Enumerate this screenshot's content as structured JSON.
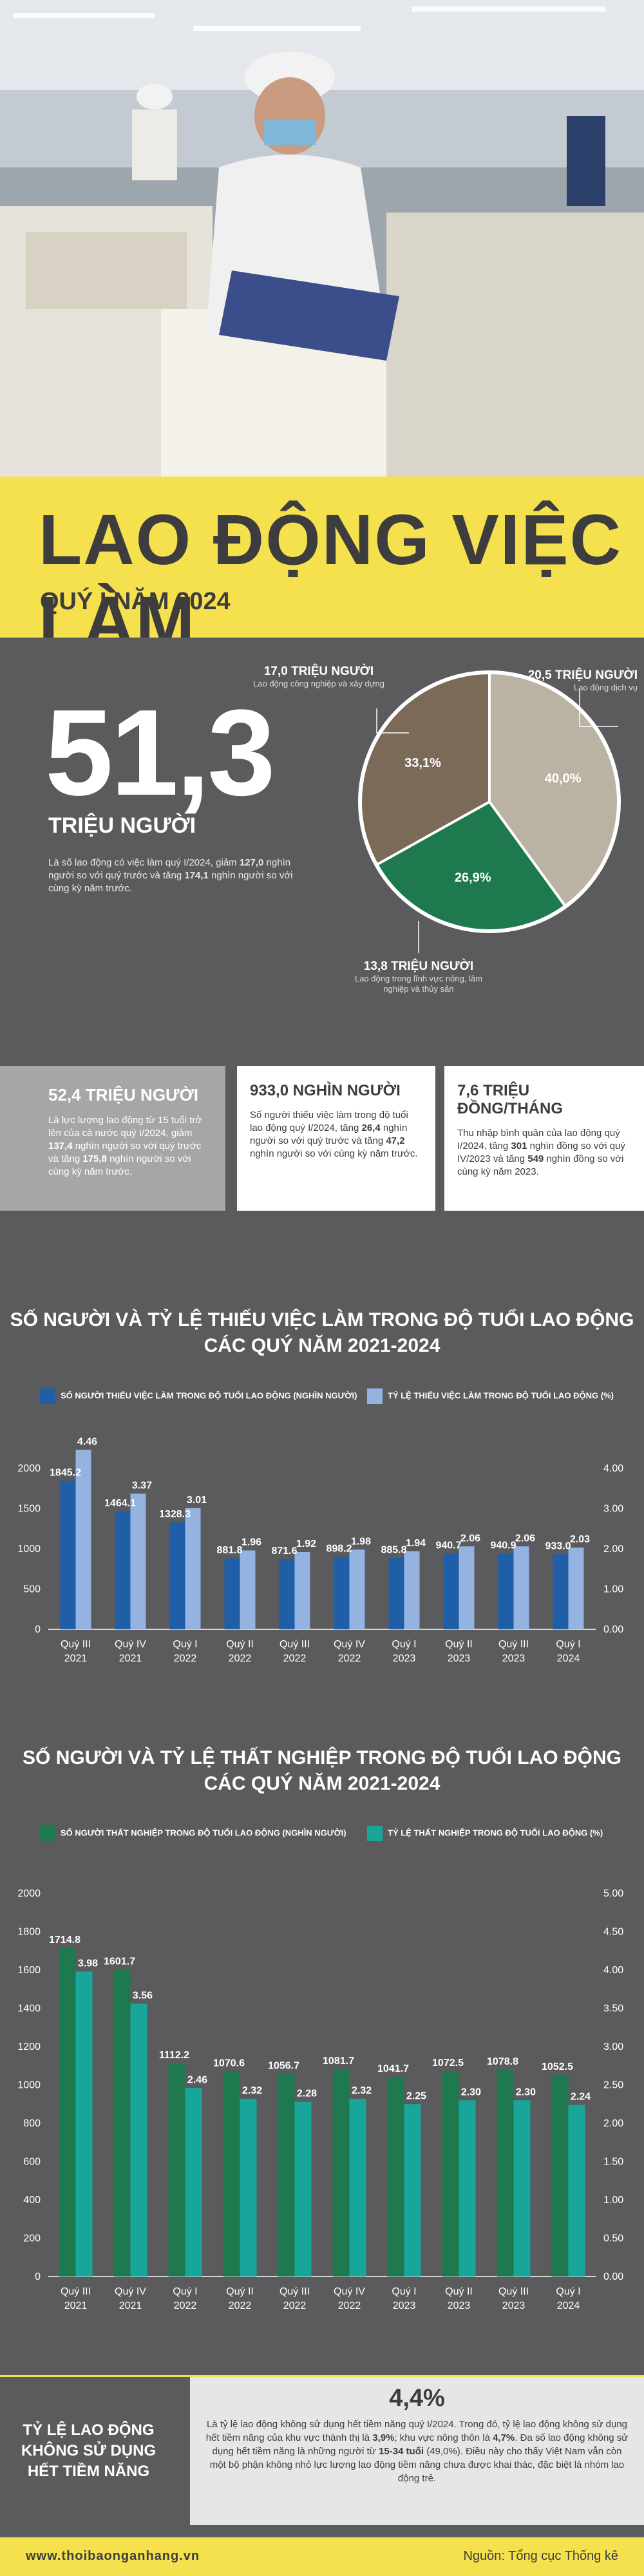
{
  "header": {
    "title": "LAO ĐỘNG VIỆC LÀM",
    "subtitle": "QUÝ I NĂM 2024"
  },
  "labor_force": {
    "value": "51,3",
    "unit": "TRIỆU NGƯỜI",
    "desc_1": "Là số lao động có việc làm quý I/2024, giảm ",
    "desc_b1": "127,0",
    "desc_2": " nghìn người so với quý trước và tăng ",
    "desc_b2": "174,1",
    "desc_3": " nghìn người so với cùng kỳ năm trước."
  },
  "pie": {
    "slices": [
      {
        "head": "20,5 TRIỆU NGƯỜI",
        "sub": "Lao động dịch vụ",
        "pct_label": "40,0%",
        "value": 40.0,
        "color": "#bab3a3"
      },
      {
        "head": "13,8 TRIỆU NGƯỜI",
        "sub": "Lao động trong lĩnh vực nông, lâm nghiệp và thủy sản",
        "pct_label": "26,9%",
        "value": 26.9,
        "color": "#1e7a4e"
      },
      {
        "head": "17,0 TRIỆU NGƯỜI",
        "sub": "Lao động công nghiệp và xây dựng",
        "pct_label": "33,1%",
        "value": 33.1,
        "color": "#7b6a58"
      }
    ]
  },
  "cards": [
    {
      "title": "52,4 TRIỆU NGƯỜI",
      "t1": "Là lực lượng lao động từ 15 tuổi trở lên của cả nước quý I/2024, giảm ",
      "b1": "137,4",
      "t2": " nghìn người so với quý trước và tăng ",
      "b2": "175,8",
      "t3": " nghìn người so với cùng kỳ năm trước."
    },
    {
      "title": "933,0 NGHÌN NGƯỜI",
      "t1": "Số người thiếu việc làm trong độ tuổi lao động quý I/2024, tăng ",
      "b1": "26,4",
      "t2": " nghìn người so với quý trước và tăng ",
      "b2": "47,2",
      "t3": " nghìn người so với cùng kỳ năm trước."
    },
    {
      "title": "7,6 TRIỆU ĐỒNG/THÁNG",
      "t1": "Thu nhập bình quân của lao động quý I/2024, tăng ",
      "b1": "301",
      "t2": " nghìn đồng so với quý IV/2023 và tăng ",
      "b2": "549",
      "t3": " nghìn đồng so với cùng kỳ năm 2023."
    }
  ],
  "chart_data": [
    {
      "type": "bar",
      "title_line1": "SỐ NGƯỜI VÀ TỶ LỆ THIẾU VIỆC LÀM TRONG ĐỘ TUỔI LAO ĐỘNG",
      "title_line2": "CÁC QUÝ NĂM 2021-2024",
      "categories": [
        [
          "Quý III",
          "2021"
        ],
        [
          "Quý IV",
          "2021"
        ],
        [
          "Quý I",
          "2022"
        ],
        [
          "Quý II",
          "2022"
        ],
        [
          "Quý III",
          "2022"
        ],
        [
          "Quý IV",
          "2022"
        ],
        [
          "Quý I",
          "2023"
        ],
        [
          "Quý II",
          "2023"
        ],
        [
          "Quý III",
          "2023"
        ],
        [
          "Quý I",
          "2024"
        ]
      ],
      "series": [
        {
          "name": "SỐ NGƯỜI THIẾU VIỆC LÀM TRONG ĐỘ TUỔI LAO ĐỘNG (NGHÌN NGƯỜI)",
          "axis": "left",
          "color": "#1f5fa8",
          "values": [
            1845.2,
            1464.1,
            1328.3,
            881.8,
            871.6,
            898.2,
            885.8,
            940.7,
            940.9,
            933.0
          ],
          "labels": [
            "1845.2",
            "1464.1",
            "1328.3",
            "881.8",
            "871.6",
            "898.2",
            "885.8",
            "940.7",
            "940.9",
            "933.0"
          ]
        },
        {
          "name": "TỶ LỆ THIẾU VIỆC LÀM TRONG ĐỘ TUỔI LAO ĐỘNG (%)",
          "axis": "right",
          "color": "#95b3e0",
          "values": [
            4.46,
            3.37,
            3.01,
            1.96,
            1.92,
            1.98,
            1.94,
            2.06,
            2.06,
            2.03
          ],
          "labels": [
            "4.46",
            "3.37",
            "3.01",
            "1.96",
            "1.92",
            "1.98",
            "1.94",
            "2.06",
            "2.06",
            "2.03"
          ]
        }
      ],
      "left_ticks": [
        "0",
        "500",
        "1000",
        "1500",
        "2000"
      ],
      "left_max": 2000,
      "right_ticks": [
        "0.00",
        "1.00",
        "2.00",
        "3.00",
        "4.00"
      ],
      "right_max": 4.0
    },
    {
      "type": "bar",
      "title_line1": "SỐ NGƯỜI VÀ TỶ LỆ THẤT NGHIỆP TRONG ĐỘ TUỔI LAO ĐỘNG",
      "title_line2": "CÁC QUÝ NĂM 2021-2024",
      "categories": [
        [
          "Quý III",
          "2021"
        ],
        [
          "Quý IV",
          "2021"
        ],
        [
          "Quý I",
          "2022"
        ],
        [
          "Quý II",
          "2022"
        ],
        [
          "Quý III",
          "2022"
        ],
        [
          "Quý IV",
          "2022"
        ],
        [
          "Quý I",
          "2023"
        ],
        [
          "Quý II",
          "2023"
        ],
        [
          "Quý III",
          "2023"
        ],
        [
          "Quý I",
          "2024"
        ]
      ],
      "series": [
        {
          "name": "SỐ NGƯỜI THẤT NGHIỆP TRONG ĐỘ TUỔI LAO ĐỘNG (NGHÌN NGƯỜI)",
          "axis": "left",
          "color": "#1e7a4e",
          "values": [
            1714.8,
            1601.7,
            1112.2,
            1070.6,
            1056.7,
            1081.7,
            1041.7,
            1072.5,
            1078.8,
            1052.5
          ],
          "labels": [
            "1714.8",
            "1601.7",
            "1112.2",
            "1070.6",
            "1056.7",
            "1081.7",
            "1041.7",
            "1072.5",
            "1078.8",
            "1052.5"
          ]
        },
        {
          "name": "TỶ LỆ THẤT NGHIỆP TRONG ĐỘ TUỔI LAO ĐỘNG (%)",
          "axis": "right",
          "color": "#19a69a",
          "values": [
            3.98,
            3.56,
            2.46,
            2.32,
            2.28,
            2.32,
            2.25,
            2.3,
            2.3,
            2.24
          ],
          "labels": [
            "3.98",
            "3.56",
            "2.46",
            "2.32",
            "2.28",
            "2.32",
            "2.25",
            "2.30",
            "2.30",
            "2.24"
          ]
        }
      ],
      "left_ticks": [
        "0",
        "200",
        "400",
        "600",
        "800",
        "1000",
        "1200",
        "1400",
        "1600",
        "1800",
        "2000"
      ],
      "left_max": 2000,
      "right_ticks": [
        "0.00",
        "0.50",
        "1.00",
        "1.50",
        "2.00",
        "2.50",
        "3.00",
        "3.50",
        "4.00",
        "4.50",
        "5.00"
      ],
      "right_max": 5.0
    }
  ],
  "untapped": {
    "label_lines": [
      "TỶ LỆ LAO ĐỘNG",
      "KHÔNG SỬ DỤNG",
      "HẾT TIỀM NĂNG"
    ],
    "value": "4,4%",
    "t1": "Là tỷ lệ lao động không sử dụng hết tiềm năng quý I/2024. Trong đó, tỷ lệ lao động không sử dụng hết tiềm năng của khu vực thành thị là ",
    "b1": "3,9%",
    "t2": "; khu vực nông thôn là ",
    "b2": "4,7%",
    "t3": ". Đa số lao động không sử dụng hết tiềm năng là những người từ ",
    "b3": "15-34 tuổi",
    "t4": " (49,0%). Điều này cho thấy Việt Nam vẫn còn một bộ phận không nhỏ lực lượng lao động tiềm năng chưa được khai thác, đặc biệt là nhóm lao động trẻ."
  },
  "footer": {
    "website": "www.thoibaonganhang.vn",
    "source": "Nguồn: Tổng cục Thống kê"
  }
}
